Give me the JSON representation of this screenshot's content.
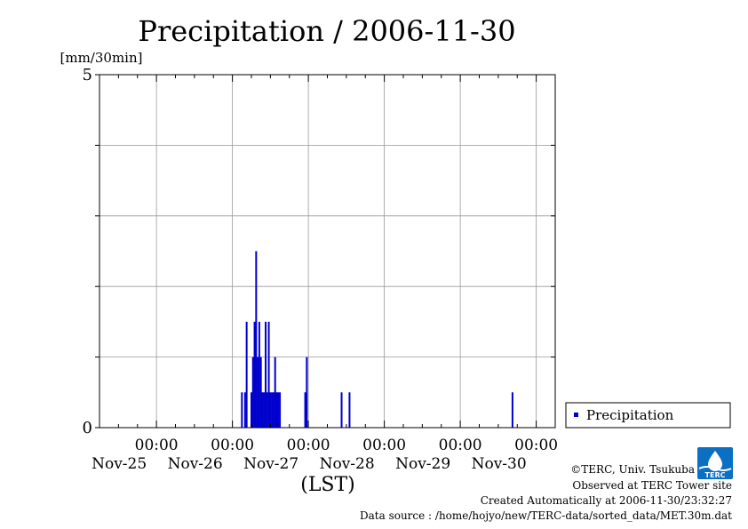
{
  "chart_data": {
    "type": "bar",
    "title": "Precipitation / 2006-11-30",
    "ylabel": "[mm/30min]",
    "xlabel": "(LST)",
    "ylim": [
      0,
      5
    ],
    "y_ticks": [
      {
        "value": 0,
        "label": "0"
      },
      {
        "value": 5,
        "label": "5"
      }
    ],
    "x_range_hours": [
      -18,
      126
    ],
    "x_ticks": [
      {
        "hour": 0,
        "time": "00:00",
        "date": "Nov-25"
      },
      {
        "hour": 24,
        "time": "00:00",
        "date": "Nov-26"
      },
      {
        "hour": 48,
        "time": "00:00",
        "date": "Nov-27"
      },
      {
        "hour": 72,
        "time": "00:00",
        "date": "Nov-28"
      },
      {
        "hour": 96,
        "time": "00:00",
        "date": "Nov-29"
      },
      {
        "hour": 120,
        "time": "00:00",
        "date": "Nov-30"
      }
    ],
    "grid": true,
    "legend_position": "right",
    "series": [
      {
        "name": "Precipitation",
        "color": "#0000cc",
        "x_hours": [
          27.0,
          28.0,
          28.5,
          30.0,
          30.5,
          31.0,
          31.5,
          32.0,
          32.5,
          33.0,
          33.5,
          34.0,
          34.5,
          35.0,
          35.5,
          36.0,
          36.5,
          37.0,
          37.5,
          38.0,
          38.5,
          39.0,
          47.0,
          47.5,
          58.5,
          61.0,
          112.5
        ],
        "values": [
          0.5,
          0.5,
          1.5,
          0.5,
          1.0,
          1.5,
          2.5,
          1.0,
          1.5,
          1.0,
          0.5,
          0.5,
          1.5,
          0.5,
          1.5,
          0.5,
          0.5,
          0.5,
          1.0,
          0.5,
          0.5,
          0.5,
          0.5,
          1.0,
          0.5,
          0.5,
          0.5
        ]
      }
    ]
  },
  "credits": {
    "copyright": "©TERC, Univ. Tsukuba",
    "observed": "Observed at TERC Tower site",
    "created": "Created Automatically at 2006-11-30/23:32:27",
    "source": "Data source : /home/hojyo/new/TERC-data/sorted_data/MET.30m.dat"
  },
  "logo": {
    "text": "TERC",
    "color": "#0b6fc4"
  }
}
